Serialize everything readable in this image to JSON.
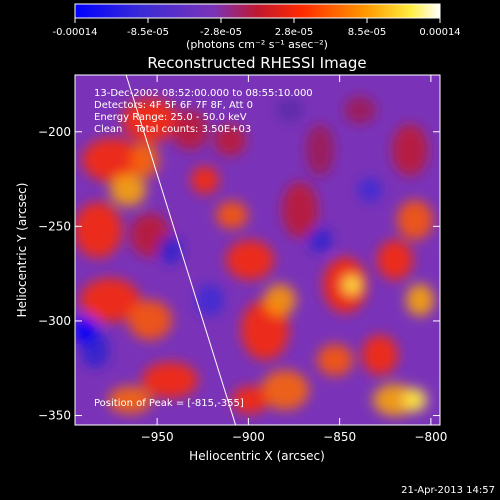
{
  "colorbar": {
    "ticks": [
      "-0.00014",
      "-8.5e-05",
      "-2.8e-05",
      "2.8e-05",
      "8.5e-05",
      "0.00014"
    ],
    "unit_label": "(photons cm⁻² s⁻¹ asec⁻²)",
    "range": [
      -0.00014,
      0.00014
    ]
  },
  "chart_data": {
    "type": "heatmap",
    "title": "Reconstructed RHESSI Image",
    "xlabel": "Heliocentric X (arcsec)",
    "ylabel": "Heliocentric Y (arcsec)",
    "xlim": [
      -995,
      -795
    ],
    "ylim": [
      -355,
      -170
    ],
    "xticks": [
      -950,
      -900,
      -850,
      -800
    ],
    "yticks": [
      -200,
      -250,
      -300,
      -350
    ],
    "xtick_labels": [
      "−950",
      "−900",
      "−850",
      "−800"
    ],
    "ytick_labels": [
      "−200",
      "−250",
      "−300",
      "−350"
    ],
    "limb_line": {
      "x": [
        -967,
        -907
      ],
      "y": [
        -170,
        -355
      ]
    },
    "peak_marker": {
      "x": -815,
      "y": -355
    },
    "info_lines": [
      "13-Dec-2002 08:52:00.000 to 08:55:10.000",
      "Detectors: 4F 5F 6F 7F 8F, Att 0",
      "Energy Range: 25.0 - 50.0 keV",
      "Clean    Total counts: 3.50E+03"
    ],
    "peak_label": "Position of Peak = [-815,-355]",
    "colors": {
      "background": "#000000",
      "negative": "#0000ff",
      "mid": "#7a33b8",
      "positive_high": "#ffffff",
      "limb_line": "#ffffff"
    }
  },
  "timestamp": "21-Apr-2013 14:57"
}
